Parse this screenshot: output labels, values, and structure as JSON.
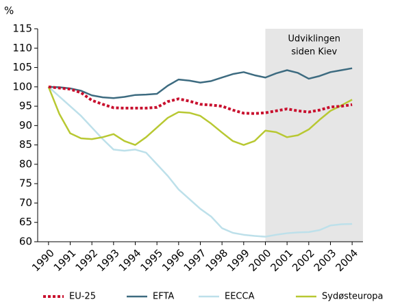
{
  "chart_data": {
    "type": "line",
    "y_unit_label": "%",
    "annotation": [
      "Udviklingen",
      "siden Kiev"
    ],
    "shade_start": 2000,
    "x": [
      1990,
      1990.5,
      1991,
      1991.5,
      1992,
      1992.5,
      1993,
      1993.5,
      1994,
      1994.5,
      1995,
      1995.5,
      1996,
      1996.5,
      1997,
      1997.5,
      1998,
      1998.5,
      1999,
      1999.5,
      2000,
      2000.5,
      2001,
      2001.5,
      2002,
      2002.5,
      2003,
      2003.5,
      2004
    ],
    "xlim": [
      1989.5,
      2004.5
    ],
    "xticks": [
      1990,
      1991,
      1992,
      1993,
      1994,
      1995,
      1996,
      1997,
      1998,
      1999,
      2000,
      2001,
      2002,
      2003,
      2004
    ],
    "ylim": [
      60,
      115
    ],
    "yticks": [
      60,
      65,
      70,
      75,
      80,
      85,
      90,
      95,
      100,
      105,
      110,
      115
    ],
    "series": [
      {
        "name": "EU-25",
        "color": "#c8102e",
        "dashed": true,
        "values": [
          100,
          99.7,
          99.4,
          98.5,
          96.5,
          95.5,
          94.6,
          94.5,
          94.5,
          94.5,
          94.7,
          96.2,
          96.9,
          96.3,
          95.5,
          95.3,
          95.0,
          94.0,
          93.2,
          93.1,
          93.3,
          93.8,
          94.3,
          93.8,
          93.5,
          94.0,
          94.8,
          95.0,
          95.4
        ]
      },
      {
        "name": "EFTA",
        "color": "#3d6b80",
        "values": [
          100,
          99.9,
          99.6,
          99.0,
          97.8,
          97.3,
          97.1,
          97.4,
          97.9,
          98.0,
          98.2,
          100.3,
          101.9,
          101.6,
          101.1,
          101.5,
          102.4,
          103.3,
          103.8,
          103.0,
          102.4,
          103.5,
          104.3,
          103.6,
          102.1,
          102.8,
          103.8,
          104.3,
          104.8
        ]
      },
      {
        "name": "EECCA",
        "color": "#bde0ea",
        "values": [
          100,
          97.5,
          95.0,
          92.5,
          89.5,
          86.5,
          83.8,
          83.5,
          83.8,
          83.0,
          80.0,
          77.0,
          73.5,
          71.0,
          68.5,
          66.5,
          63.5,
          62.3,
          61.8,
          61.5,
          61.3,
          61.8,
          62.2,
          62.4,
          62.5,
          63.0,
          64.2,
          64.5,
          64.6
        ]
      },
      {
        "name": "Sydøsteuropa",
        "color": "#b8c832",
        "values": [
          100,
          93.0,
          88.0,
          86.7,
          86.5,
          87.0,
          87.8,
          86.0,
          85.0,
          87.0,
          89.5,
          92.0,
          93.5,
          93.3,
          92.5,
          90.5,
          88.2,
          86.0,
          85.0,
          86.0,
          88.7,
          88.3,
          87.0,
          87.5,
          89.0,
          91.5,
          93.8,
          95.2,
          96.7
        ]
      }
    ]
  }
}
